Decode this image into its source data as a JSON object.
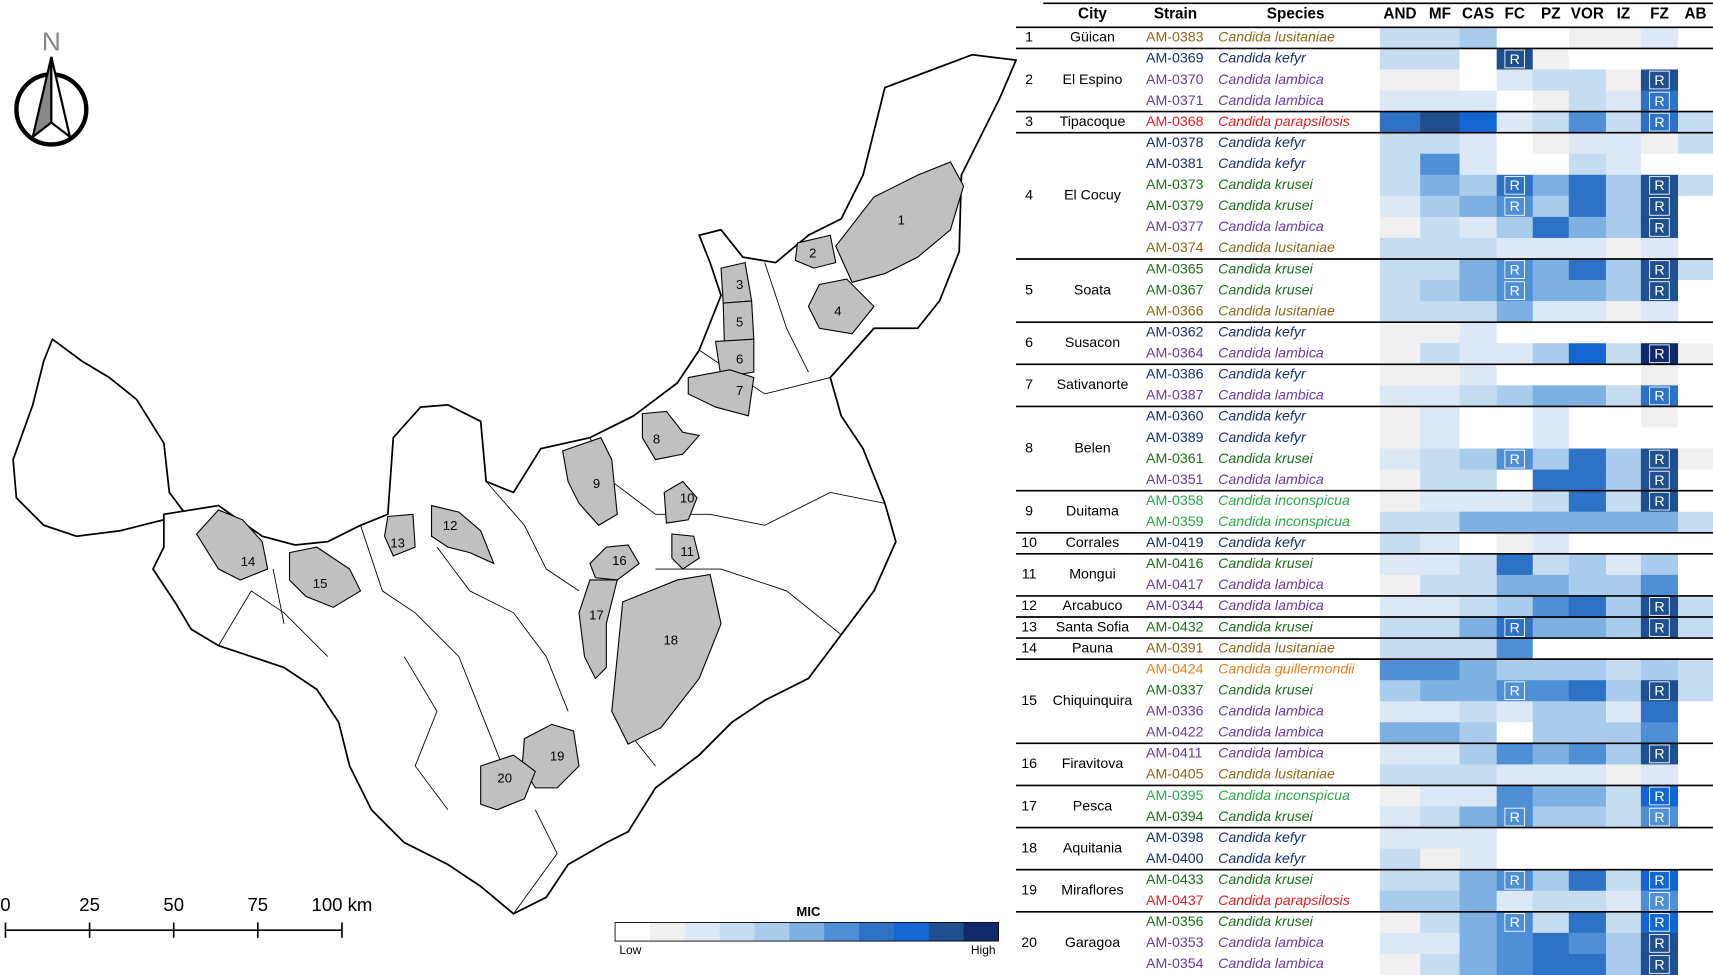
{
  "map": {
    "north": "N",
    "scale_labels": [
      "0",
      "25",
      "50",
      "75",
      "100 km"
    ]
  },
  "legend": {
    "title": "MIC",
    "low": "Low",
    "high": "High",
    "palette": [
      "#ffffff",
      "#f0f0f0",
      "#dce8f6",
      "#c5dcf1",
      "#a9cbec",
      "#7eb0e2",
      "#4f8fd6",
      "#2e72c6",
      "#1466d2",
      "#1f4f8f",
      "#0f2a6a"
    ]
  },
  "table": {
    "headers": [
      "City",
      "Strain",
      "Species"
    ],
    "drugs": [
      "AND",
      "MF",
      "CAS",
      "FC",
      "PZ",
      "VOR",
      "IZ",
      "FZ",
      "AB"
    ],
    "species_colors": {
      "Candida lusitaniae": "#8a6a1c",
      "Candida kefyr": "#1a2f6e",
      "Candida lambica": "#6a3aa0",
      "Candida parapsilosis": "#e02020",
      "Candida krusei": "#1f6e1f",
      "Candida inconspicua": "#2aa84a",
      "Candida guillermondii": "#e8801e"
    },
    "groups": [
      {
        "number": "1",
        "city": "Güican",
        "isolates": [
          {
            "strain": "AM-0383",
            "species": "Candida lusitaniae",
            "mic": [
              3,
              3,
              4,
              0,
              0,
              1,
              1,
              2,
              0
            ]
          }
        ]
      },
      {
        "number": "2",
        "city": "El Espino",
        "isolates": [
          {
            "strain": "AM-0369",
            "species": "Candida kefyr",
            "mic": [
              3,
              3,
              0,
              9,
              1,
              0,
              0,
              0,
              0
            ],
            "flags": {
              "FC": "R"
            }
          },
          {
            "strain": "AM-0370",
            "species": "Candida lambica",
            "mic": [
              1,
              1,
              0,
              2,
              3,
              3,
              1,
              9,
              0
            ],
            "flags": {
              "FZ": "R"
            }
          },
          {
            "strain": "AM-0371",
            "species": "Candida lambica",
            "mic": [
              2,
              2,
              2,
              0,
              1,
              3,
              2,
              7,
              0
            ],
            "flags": {
              "FZ": "R"
            }
          }
        ]
      },
      {
        "number": "3",
        "city": "Tipacoque",
        "isolates": [
          {
            "strain": "AM-0368",
            "species": "Candida parapsilosis",
            "mic": [
              7,
              9,
              8,
              2,
              3,
              6,
              3,
              7,
              3
            ],
            "flags": {
              "FZ": "R"
            }
          }
        ]
      },
      {
        "number": "4",
        "city": "El Cocuy",
        "isolates": [
          {
            "strain": "AM-0378",
            "species": "Candida kefyr",
            "mic": [
              3,
              3,
              2,
              0,
              1,
              2,
              2,
              1,
              3
            ]
          },
          {
            "strain": "AM-0381",
            "species": "Candida kefyr",
            "mic": [
              3,
              6,
              2,
              0,
              0,
              3,
              2,
              0,
              0
            ]
          },
          {
            "strain": "AM-0373",
            "species": "Candida krusei",
            "mic": [
              3,
              5,
              4,
              7,
              5,
              7,
              4,
              9,
              3
            ],
            "flags": {
              "FC": "R",
              "FZ": "R"
            }
          },
          {
            "strain": "AM-0379",
            "species": "Candida krusei",
            "mic": [
              2,
              4,
              5,
              6,
              4,
              7,
              4,
              9,
              0
            ],
            "flags": {
              "FC": "R",
              "FZ": "R"
            }
          },
          {
            "strain": "AM-0377",
            "species": "Candida lambica",
            "mic": [
              1,
              3,
              2,
              4,
              7,
              5,
              4,
              9,
              0
            ],
            "flags": {
              "FZ": "R"
            }
          },
          {
            "strain": "AM-0374",
            "species": "Candida lusitaniae",
            "mic": [
              3,
              3,
              3,
              2,
              2,
              2,
              1,
              2,
              0
            ]
          }
        ]
      },
      {
        "number": "5",
        "city": "Soata",
        "isolates": [
          {
            "strain": "AM-0365",
            "species": "Candida krusei",
            "mic": [
              3,
              3,
              5,
              6,
              5,
              7,
              4,
              9,
              3
            ],
            "flags": {
              "FC": "R",
              "FZ": "R"
            }
          },
          {
            "strain": "AM-0367",
            "species": "Candida krusei",
            "mic": [
              3,
              4,
              5,
              6,
              5,
              5,
              4,
              9,
              0
            ],
            "flags": {
              "FC": "R",
              "FZ": "R"
            }
          },
          {
            "strain": "AM-0366",
            "species": "Candida lusitaniae",
            "mic": [
              3,
              3,
              3,
              5,
              2,
              2,
              1,
              2,
              0
            ]
          }
        ]
      },
      {
        "number": "6",
        "city": "Susacon",
        "isolates": [
          {
            "strain": "AM-0362",
            "species": "Candida kefyr",
            "mic": [
              1,
              1,
              2,
              0,
              0,
              0,
              0,
              0,
              0
            ]
          },
          {
            "strain": "AM-0364",
            "species": "Candida lambica",
            "mic": [
              1,
              3,
              2,
              2,
              4,
              8,
              3,
              10,
              1
            ],
            "flags": {
              "FZ": "R"
            }
          }
        ]
      },
      {
        "number": "7",
        "city": "Sativanorte",
        "isolates": [
          {
            "strain": "AM-0386",
            "species": "Candida kefyr",
            "mic": [
              1,
              1,
              2,
              0,
              0,
              0,
              0,
              1,
              0
            ]
          },
          {
            "strain": "AM-0387",
            "species": "Candida lambica",
            "mic": [
              2,
              2,
              3,
              4,
              5,
              5,
              3,
              7,
              0
            ],
            "flags": {
              "FZ": "R"
            }
          }
        ]
      },
      {
        "number": "8",
        "city": "Belen",
        "isolates": [
          {
            "strain": "AM-0360",
            "species": "Candida kefyr",
            "mic": [
              1,
              2,
              0,
              0,
              2,
              0,
              0,
              1,
              0
            ]
          },
          {
            "strain": "AM-0389",
            "species": "Candida kefyr",
            "mic": [
              1,
              2,
              0,
              0,
              2,
              0,
              0,
              0,
              0
            ]
          },
          {
            "strain": "AM-0361",
            "species": "Candida krusei",
            "mic": [
              2,
              3,
              4,
              6,
              4,
              7,
              4,
              9,
              1
            ],
            "flags": {
              "FC": "R",
              "FZ": "R"
            }
          },
          {
            "strain": "AM-0351",
            "species": "Candida lambica",
            "mic": [
              1,
              3,
              3,
              0,
              7,
              7,
              4,
              9,
              0
            ],
            "flags": {
              "FZ": "R"
            }
          }
        ]
      },
      {
        "number": "9",
        "city": "Duitama",
        "isolates": [
          {
            "strain": "AM-0358",
            "species": "Candida inconspicua",
            "mic": [
              1,
              2,
              2,
              2,
              3,
              7,
              3,
              9,
              0
            ],
            "flags": {
              "FZ": "R"
            }
          },
          {
            "strain": "AM-0359",
            "species": "Candida inconspicua",
            "mic": [
              3,
              3,
              5,
              5,
              5,
              5,
              5,
              5,
              3
            ]
          }
        ]
      },
      {
        "number": "10",
        "city": "Corrales",
        "isolates": [
          {
            "strain": "AM-0419",
            "species": "Candida kefyr",
            "mic": [
              3,
              2,
              0,
              1,
              2,
              0,
              0,
              0,
              0
            ]
          }
        ]
      },
      {
        "number": "11",
        "city": "Mongui",
        "isolates": [
          {
            "strain": "AM-0416",
            "species": "Candida krusei",
            "mic": [
              2,
              2,
              3,
              7,
              3,
              4,
              2,
              4,
              0
            ]
          },
          {
            "strain": "AM-0417",
            "species": "Candida lambica",
            "mic": [
              1,
              3,
              3,
              5,
              5,
              4,
              4,
              6,
              0
            ]
          }
        ]
      },
      {
        "number": "12",
        "city": "Arcabuco",
        "isolates": [
          {
            "strain": "AM-0344",
            "species": "Candida lambica",
            "mic": [
              2,
              2,
              3,
              4,
              6,
              7,
              4,
              9,
              3
            ],
            "flags": {
              "FZ": "R"
            }
          }
        ]
      },
      {
        "number": "13",
        "city": "Santa Sofia",
        "isolates": [
          {
            "strain": "AM-0432",
            "species": "Candida krusei",
            "mic": [
              3,
              3,
              5,
              7,
              5,
              5,
              4,
              9,
              3
            ],
            "flags": {
              "FC": "R",
              "FZ": "R"
            }
          }
        ]
      },
      {
        "number": "14",
        "city": "Pauna",
        "isolates": [
          {
            "strain": "AM-0391",
            "species": "Candida lusitaniae",
            "mic": [
              3,
              3,
              3,
              6,
              0,
              0,
              0,
              0,
              0
            ]
          }
        ]
      },
      {
        "number": "15",
        "city": "Chiquinquira",
        "isolates": [
          {
            "strain": "AM-0424",
            "species": "Candida guillermondii",
            "mic": [
              6,
              6,
              5,
              4,
              4,
              4,
              3,
              4,
              3
            ]
          },
          {
            "strain": "AM-0337",
            "species": "Candida krusei",
            "mic": [
              4,
              5,
              5,
              6,
              6,
              7,
              4,
              9,
              3
            ],
            "flags": {
              "FC": "R",
              "FZ": "R"
            }
          },
          {
            "strain": "AM-0336",
            "species": "Candida lambica",
            "mic": [
              2,
              2,
              3,
              2,
              4,
              4,
              2,
              7,
              0
            ]
          },
          {
            "strain": "AM-0422",
            "species": "Candida lambica",
            "mic": [
              5,
              5,
              4,
              0,
              4,
              4,
              4,
              6,
              0
            ]
          }
        ]
      },
      {
        "number": "16",
        "city": "Firavitova",
        "isolates": [
          {
            "strain": "AM-0411",
            "species": "Candida lambica",
            "mic": [
              2,
              2,
              4,
              6,
              5,
              6,
              4,
              9,
              0
            ],
            "flags": {
              "FZ": "R"
            }
          },
          {
            "strain": "AM-0405",
            "species": "Candida lusitaniae",
            "mic": [
              3,
              3,
              3,
              2,
              2,
              2,
              1,
              2,
              0
            ]
          }
        ]
      },
      {
        "number": "17",
        "city": "Pesca",
        "isolates": [
          {
            "strain": "AM-0395",
            "species": "Candida inconspicua",
            "mic": [
              1,
              2,
              2,
              6,
              5,
              5,
              3,
              8,
              0
            ],
            "flags": {
              "FZ": "R"
            }
          },
          {
            "strain": "AM-0394",
            "species": "Candida krusei",
            "mic": [
              2,
              3,
              5,
              6,
              4,
              4,
              3,
              6,
              0
            ],
            "flags": {
              "FC": "R",
              "FZ": "R"
            }
          }
        ]
      },
      {
        "number": "18",
        "city": "Aquitania",
        "isolates": [
          {
            "strain": "AM-0398",
            "species": "Candida kefyr",
            "mic": [
              2,
              2,
              2,
              0,
              0,
              0,
              0,
              0,
              0
            ]
          },
          {
            "strain": "AM-0400",
            "species": "Candida kefyr",
            "mic": [
              3,
              1,
              2,
              0,
              0,
              0,
              0,
              0,
              0
            ]
          }
        ]
      },
      {
        "number": "19",
        "city": "Miraflores",
        "isolates": [
          {
            "strain": "AM-0433",
            "species": "Candida krusei",
            "mic": [
              3,
              3,
              5,
              6,
              4,
              7,
              3,
              8,
              0
            ],
            "flags": {
              "FC": "R",
              "FZ": "R"
            }
          },
          {
            "strain": "AM-0437",
            "species": "Candida parapsilosis",
            "mic": [
              4,
              4,
              5,
              2,
              3,
              3,
              2,
              6,
              0
            ],
            "flags": {
              "FZ": "R"
            }
          }
        ]
      },
      {
        "number": "20",
        "city": "Garagoa",
        "isolates": [
          {
            "strain": "AM-0356",
            "species": "Candida krusei",
            "mic": [
              1,
              3,
              5,
              6,
              3,
              7,
              3,
              8,
              0
            ],
            "flags": {
              "FC": "R",
              "FZ": "R"
            }
          },
          {
            "strain": "AM-0353",
            "species": "Candida lambica",
            "mic": [
              2,
              2,
              5,
              6,
              7,
              6,
              4,
              9,
              0
            ],
            "flags": {
              "FZ": "R"
            }
          },
          {
            "strain": "AM-0354",
            "species": "Candida lambica",
            "mic": [
              1,
              3,
              5,
              6,
              7,
              7,
              4,
              9,
              0
            ],
            "flags": {
              "FZ": "R"
            }
          }
        ]
      }
    ]
  }
}
